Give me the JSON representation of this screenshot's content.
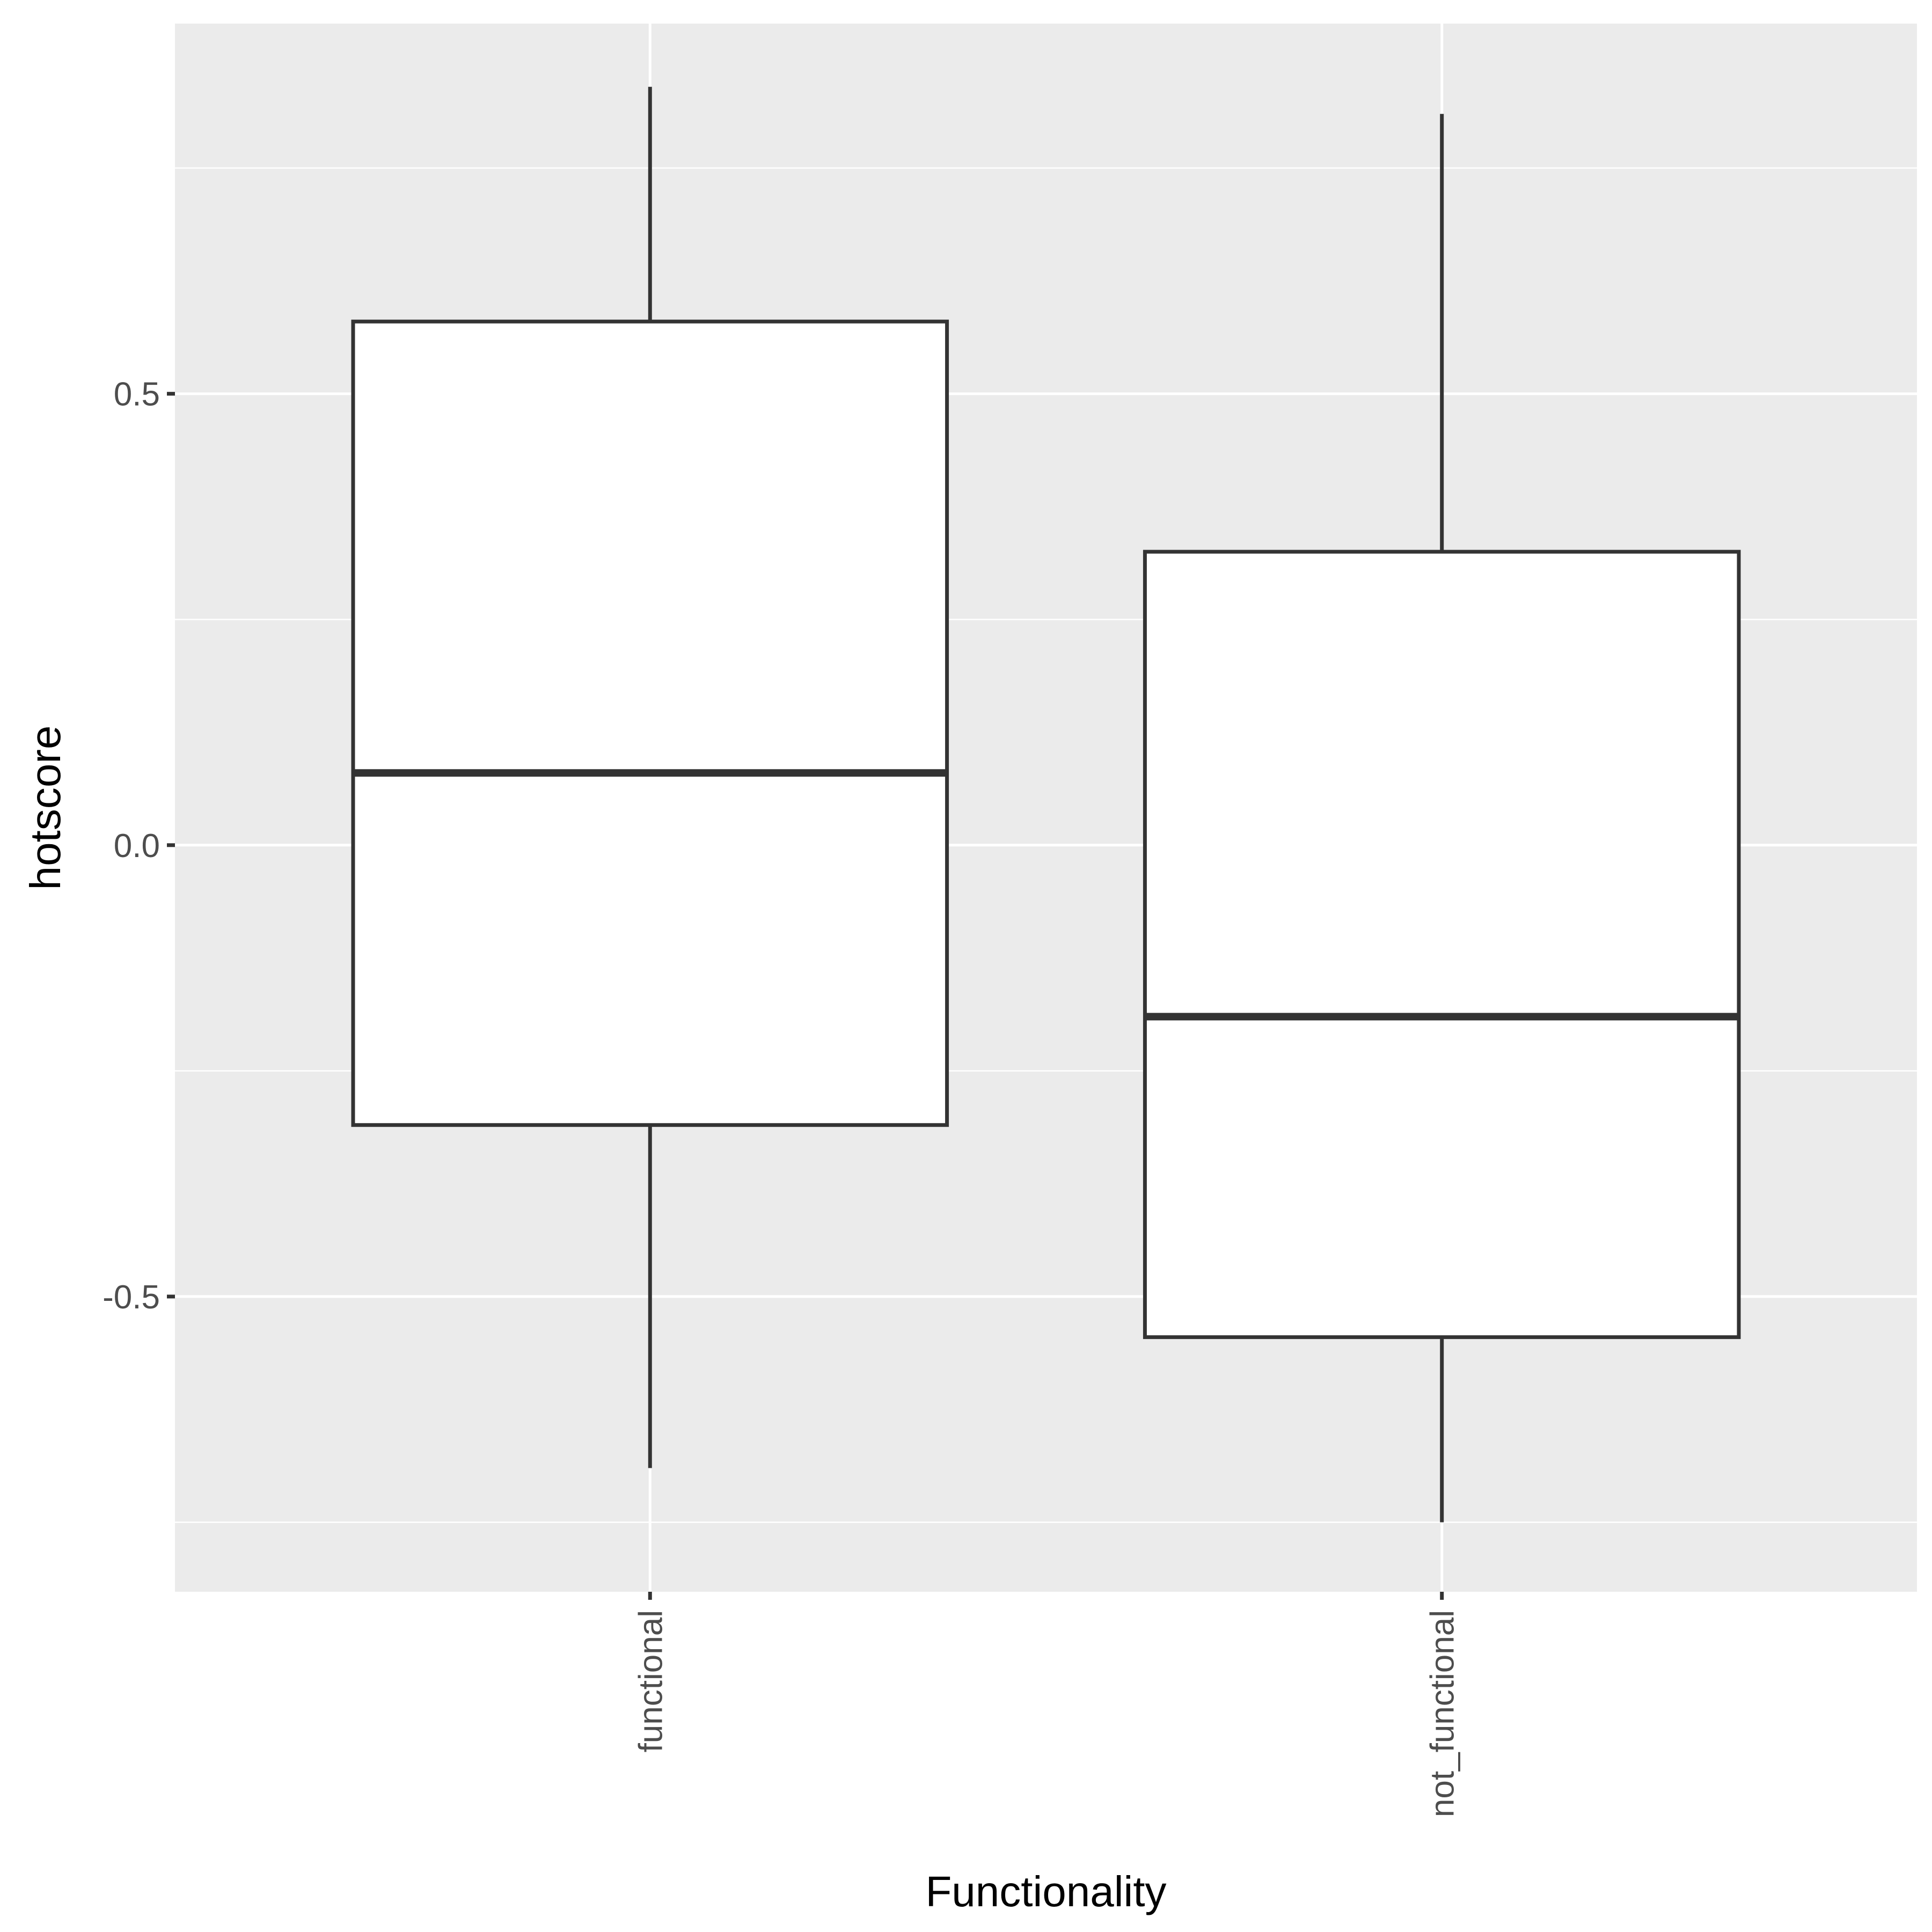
{
  "chart_data": {
    "type": "boxplot",
    "xlabel": "Functionality",
    "ylabel": "hotscore",
    "categories": [
      "functional",
      "not_functional"
    ],
    "boxes": [
      {
        "category": "functional",
        "whisker_low": -0.69,
        "q1": -0.31,
        "median": 0.08,
        "q3": 0.58,
        "whisker_high": 0.84
      },
      {
        "category": "not_functional",
        "whisker_low": -0.75,
        "q1": -0.545,
        "median": -0.19,
        "q3": 0.325,
        "whisker_high": 0.81
      }
    ],
    "yticks": [
      -0.5,
      0.0,
      0.5
    ],
    "ytick_labels": [
      "-0.5",
      "0.0",
      "0.5"
    ],
    "ylim": [
      -0.827,
      0.91
    ],
    "grid": true,
    "colors": {
      "panel_background": "#ebebeb",
      "grid": "#ffffff",
      "box_fill": "#ffffff",
      "box_stroke": "#333333",
      "tick_text": "#4d4d4d"
    }
  }
}
